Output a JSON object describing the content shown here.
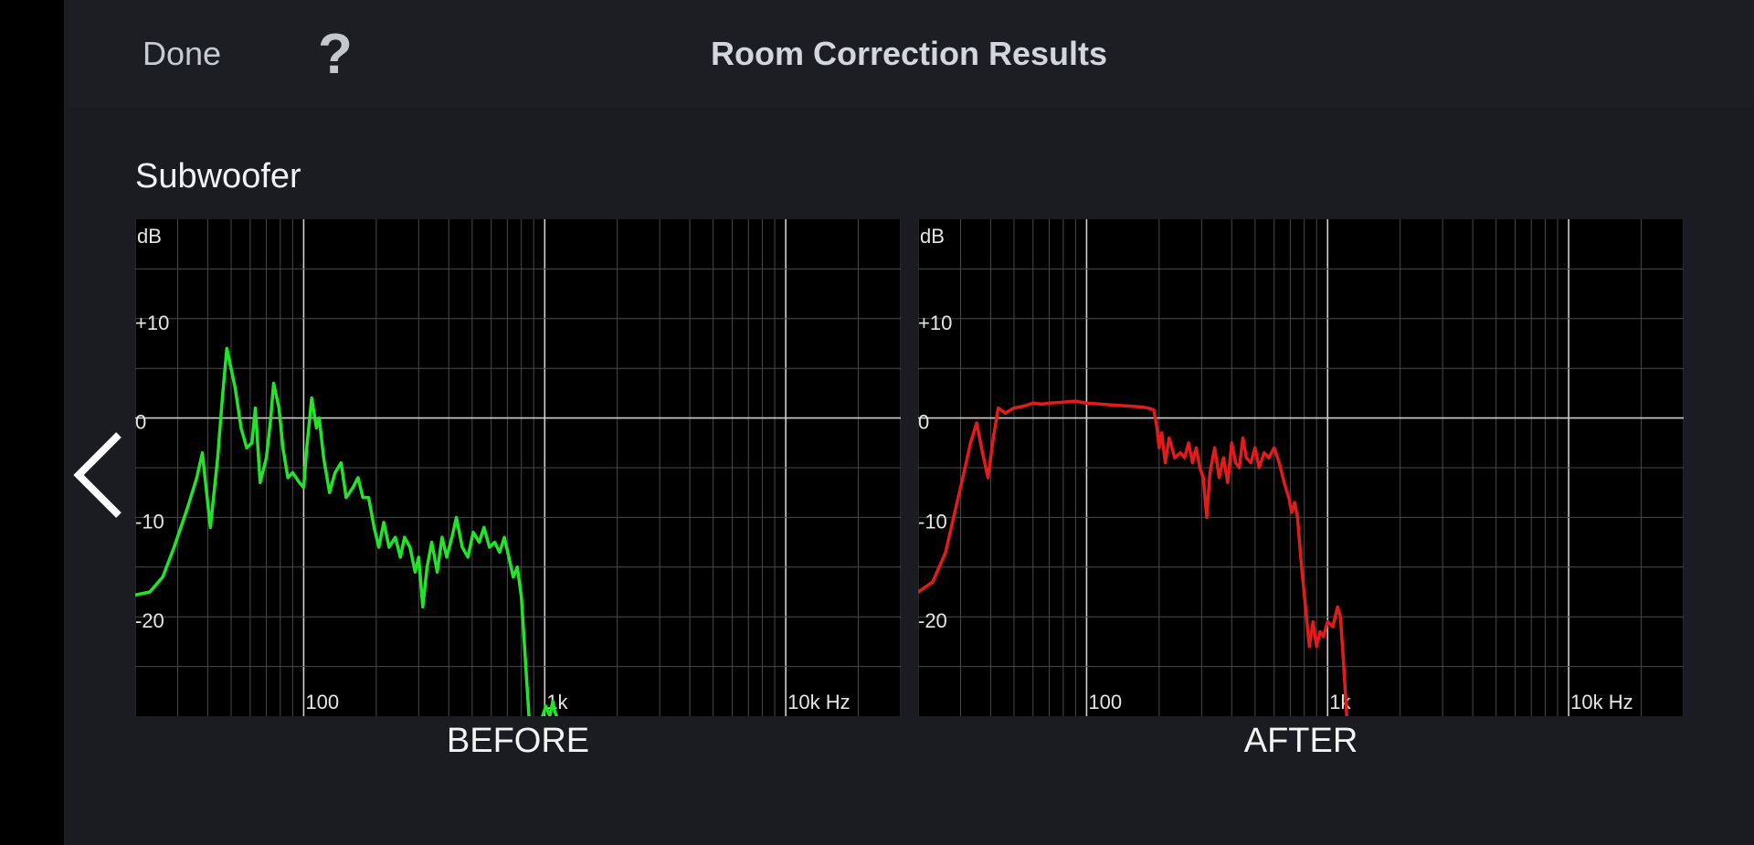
{
  "header": {
    "done_label": "Done",
    "help_label": "?",
    "title": "Room Correction Results"
  },
  "section": {
    "title": "Subwoofer"
  },
  "nav": {
    "back_icon": "chevron-left-icon"
  },
  "colors": {
    "before_line": "#22e52a",
    "after_line": "#e41b1b",
    "grid": "#4a4a4a",
    "axis_major": "#cfcfcf",
    "plot_bg": "#000000",
    "app_bg": "#1a1c21"
  },
  "chart_data": [
    {
      "type": "line",
      "caption": "BEFORE",
      "xscale": "log",
      "xlim": [
        20,
        30000
      ],
      "ylim": [
        -30,
        20
      ],
      "ylabel": "dB",
      "y_ticks": [
        {
          "value": 10,
          "label": "+10"
        },
        {
          "value": 0,
          "label": "0"
        },
        {
          "value": -10,
          "label": "-10"
        },
        {
          "value": -20,
          "label": "-20"
        }
      ],
      "x_ticks": [
        {
          "value": 100,
          "label": "100"
        },
        {
          "value": 1000,
          "label": "1k"
        },
        {
          "value": 10000,
          "label": "10k Hz"
        }
      ],
      "grid": true,
      "series": [
        {
          "color": "#22e52a",
          "points": [
            [
              20,
              -17.8
            ],
            [
              23,
              -17.5
            ],
            [
              26,
              -16
            ],
            [
              29,
              -13
            ],
            [
              33,
              -9
            ],
            [
              36,
              -6
            ],
            [
              38,
              -3.5
            ],
            [
              41,
              -11
            ],
            [
              44,
              -4
            ],
            [
              46,
              2
            ],
            [
              48,
              7
            ],
            [
              52,
              3
            ],
            [
              55,
              -1
            ],
            [
              58,
              -3
            ],
            [
              61,
              -2.5
            ],
            [
              63,
              1
            ],
            [
              66,
              -6.5
            ],
            [
              70,
              -4
            ],
            [
              73,
              0
            ],
            [
              75,
              3.5
            ],
            [
              79,
              1
            ],
            [
              82,
              -3
            ],
            [
              86,
              -6
            ],
            [
              90,
              -5.5
            ],
            [
              96,
              -6.5
            ],
            [
              100,
              -7
            ],
            [
              103,
              -3
            ],
            [
              108,
              2
            ],
            [
              113,
              -1
            ],
            [
              116,
              0
            ],
            [
              121,
              -4
            ],
            [
              128,
              -7.5
            ],
            [
              135,
              -5.5
            ],
            [
              143,
              -4.5
            ],
            [
              150,
              -8
            ],
            [
              160,
              -7
            ],
            [
              168,
              -6
            ],
            [
              176,
              -8
            ],
            [
              186,
              -8
            ],
            [
              196,
              -11
            ],
            [
              205,
              -13
            ],
            [
              215,
              -10.5
            ],
            [
              226,
              -13
            ],
            [
              240,
              -12
            ],
            [
              252,
              -14
            ],
            [
              262,
              -12
            ],
            [
              276,
              -13
            ],
            [
              290,
              -15.5
            ],
            [
              300,
              -14
            ],
            [
              312,
              -19
            ],
            [
              325,
              -15
            ],
            [
              340,
              -12.5
            ],
            [
              358,
              -15.5
            ],
            [
              375,
              -12
            ],
            [
              392,
              -14
            ],
            [
              412,
              -12
            ],
            [
              430,
              -10
            ],
            [
              455,
              -13
            ],
            [
              480,
              -14
            ],
            [
              505,
              -11.5
            ],
            [
              535,
              -12.5
            ],
            [
              560,
              -11
            ],
            [
              590,
              -13
            ],
            [
              620,
              -12.5
            ],
            [
              650,
              -13.5
            ],
            [
              680,
              -12
            ],
            [
              710,
              -14
            ],
            [
              740,
              -16
            ],
            [
              770,
              -15
            ],
            [
              800,
              -18
            ],
            [
              830,
              -24
            ],
            [
              860,
              -30
            ],
            [
              900,
              -30.5
            ],
            [
              940,
              -30.5
            ],
            [
              980,
              -30
            ],
            [
              1010,
              -29
            ],
            [
              1050,
              -30
            ],
            [
              1080,
              -28.5
            ],
            [
              1100,
              -29.5
            ],
            [
              1120,
              -30
            ]
          ]
        }
      ]
    },
    {
      "type": "line",
      "caption": "AFTER",
      "xscale": "log",
      "xlim": [
        20,
        30000
      ],
      "ylim": [
        -30,
        20
      ],
      "ylabel": "dB",
      "y_ticks": [
        {
          "value": 10,
          "label": "+10"
        },
        {
          "value": 0,
          "label": "0"
        },
        {
          "value": -10,
          "label": "-10"
        },
        {
          "value": -20,
          "label": "-20"
        }
      ],
      "x_ticks": [
        {
          "value": 100,
          "label": "100"
        },
        {
          "value": 1000,
          "label": "1k"
        },
        {
          "value": 10000,
          "label": "10k Hz"
        }
      ],
      "grid": true,
      "series": [
        {
          "color": "#e41b1b",
          "points": [
            [
              20,
              -17.5
            ],
            [
              23,
              -16.5
            ],
            [
              26,
              -13.5
            ],
            [
              29,
              -8.5
            ],
            [
              31,
              -5.5
            ],
            [
              33,
              -2.5
            ],
            [
              35,
              -0.5
            ],
            [
              37,
              -3.5
            ],
            [
              39,
              -6
            ],
            [
              41,
              -2
            ],
            [
              43,
              1
            ],
            [
              46,
              0.5
            ],
            [
              50,
              1
            ],
            [
              55,
              1.2
            ],
            [
              60,
              1.5
            ],
            [
              65,
              1.4
            ],
            [
              70,
              1.5
            ],
            [
              80,
              1.6
            ],
            [
              90,
              1.7
            ],
            [
              100,
              1.5
            ],
            [
              115,
              1.4
            ],
            [
              130,
              1.3
            ],
            [
              150,
              1.2
            ],
            [
              170,
              1.1
            ],
            [
              180,
              1
            ],
            [
              190,
              0.8
            ],
            [
              196,
              -1
            ],
            [
              200,
              -3
            ],
            [
              205,
              -1.5
            ],
            [
              212,
              -4.5
            ],
            [
              220,
              -2
            ],
            [
              232,
              -4
            ],
            [
              245,
              -3.5
            ],
            [
              255,
              -4
            ],
            [
              265,
              -2.5
            ],
            [
              275,
              -4.5
            ],
            [
              285,
              -3
            ],
            [
              295,
              -5
            ],
            [
              305,
              -6
            ],
            [
              315,
              -10
            ],
            [
              325,
              -5.5
            ],
            [
              340,
              -3
            ],
            [
              355,
              -6
            ],
            [
              370,
              -4
            ],
            [
              385,
              -6.5
            ],
            [
              400,
              -2.5
            ],
            [
              415,
              -4.5
            ],
            [
              430,
              -5
            ],
            [
              445,
              -2
            ],
            [
              460,
              -4
            ],
            [
              480,
              -4.5
            ],
            [
              500,
              -3
            ],
            [
              520,
              -5
            ],
            [
              545,
              -3.5
            ],
            [
              570,
              -4
            ],
            [
              600,
              -3
            ],
            [
              630,
              -4.5
            ],
            [
              660,
              -6.5
            ],
            [
              690,
              -8
            ],
            [
              710,
              -9.5
            ],
            [
              730,
              -8.5
            ],
            [
              750,
              -10
            ],
            [
              780,
              -15
            ],
            [
              810,
              -19
            ],
            [
              840,
              -23
            ],
            [
              870,
              -20.5
            ],
            [
              900,
              -23
            ],
            [
              930,
              -21.5
            ],
            [
              960,
              -22
            ],
            [
              1000,
              -20.5
            ],
            [
              1050,
              -21
            ],
            [
              1100,
              -19
            ],
            [
              1130,
              -20
            ],
            [
              1160,
              -24
            ],
            [
              1200,
              -30
            ]
          ]
        }
      ]
    }
  ]
}
